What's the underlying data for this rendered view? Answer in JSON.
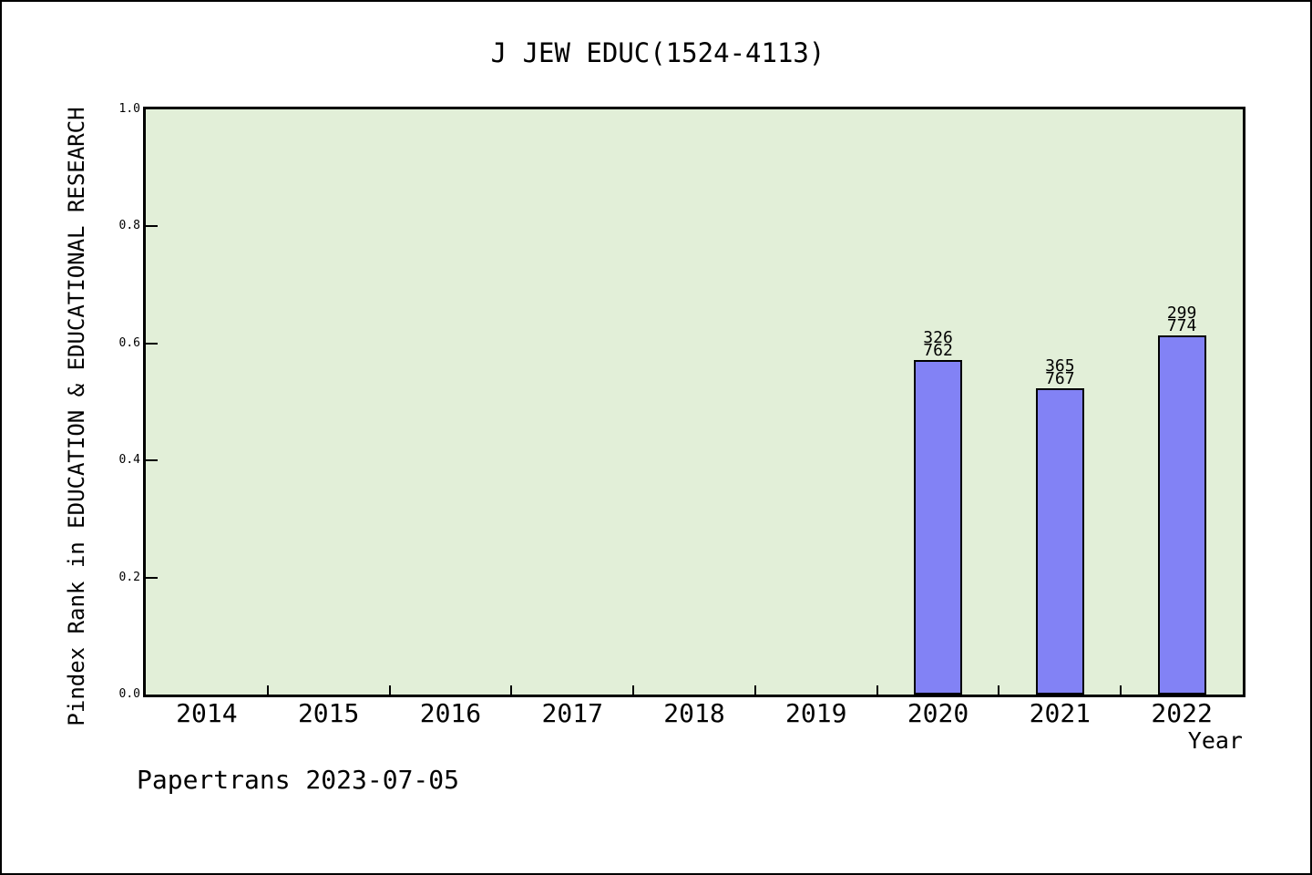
{
  "chart_data": {
    "type": "bar",
    "title": "J JEW EDUC(1524-4113)",
    "xlabel": "Year",
    "ylabel": "Pindex Rank in EDUCATION & EDUCATIONAL RESEARCH",
    "x_categories": [
      "2014",
      "2015",
      "2016",
      "2017",
      "2018",
      "2019",
      "2020",
      "2021",
      "2022"
    ],
    "x_positions": [
      2014,
      2015,
      2016,
      2017,
      2018,
      2019,
      2020,
      2021,
      2022
    ],
    "xlim": [
      2013.5,
      2022.5
    ],
    "ylim": [
      0.0,
      1.0
    ],
    "y_ticks": [
      {
        "value": 0.0,
        "label": "0.0"
      },
      {
        "value": 0.2,
        "label": "0.2"
      },
      {
        "value": 0.4,
        "label": "0.4"
      },
      {
        "value": 0.6,
        "label": "0.6"
      },
      {
        "value": 0.8,
        "label": "0.8"
      },
      {
        "value": 1.0,
        "label": "1.0"
      }
    ],
    "x_minor_ticks": [
      2014.5,
      2015.5,
      2016.5,
      2017.5,
      2018.5,
      2019.5,
      2020.5,
      2021.5
    ],
    "grid": false,
    "legend": null,
    "bars": [
      {
        "year": "2020",
        "x": 2020,
        "rank": 326,
        "total": 762,
        "value": 0.5722,
        "label_lines": [
          "326",
          "762"
        ]
      },
      {
        "year": "2021",
        "x": 2021,
        "rank": 365,
        "total": 767,
        "value": 0.5241,
        "label_lines": [
          "365",
          "767"
        ]
      },
      {
        "year": "2022",
        "x": 2022,
        "rank": 299,
        "total": 774,
        "value": 0.6137,
        "label_lines": [
          "299",
          "774"
        ]
      }
    ],
    "colors": {
      "bar_fill": "#8282f5",
      "bar_edge": "#000000",
      "plot_bg": "#e2efd8",
      "page_bg": "#ffffff",
      "text": "#000000"
    }
  },
  "footer": {
    "text": "Papertrans 2023-07-05"
  }
}
